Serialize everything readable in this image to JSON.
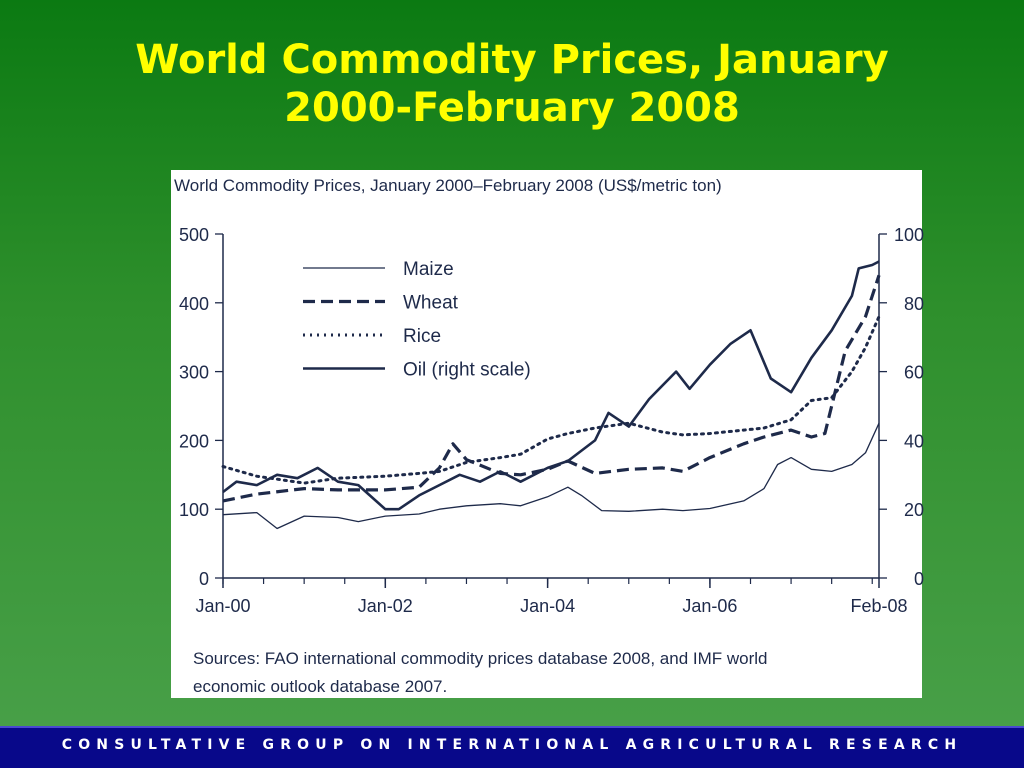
{
  "slide": {
    "title_line1": "World Commodity Prices, January",
    "title_line2": "2000-February 2008",
    "footer": "CONSULTATIVE GROUP ON INTERNATIONAL AGRICULTURAL RESEARCH"
  },
  "colors": {
    "title": "#ffff00",
    "footer_bg": "#08088a",
    "line": "#1e2a4a"
  },
  "chart_data": {
    "type": "line",
    "title": "World Commodity Prices, January 2000–February 2008 (US$/metric ton)",
    "source_line1": "Sources:  FAO international commodity prices database 2008, and IMF world",
    "source_line2": "economic outlook database 2007.",
    "x_ticks": [
      "Jan-00",
      "Jan-02",
      "Jan-04",
      "Jan-06",
      "Feb-08"
    ],
    "x_tick_dates": [
      "2000-01",
      "2002-01",
      "2004-01",
      "2006-01",
      "2008-02"
    ],
    "y_left_ticks": [
      "0",
      "100",
      "200",
      "300",
      "400",
      "500"
    ],
    "y_left_range": [
      0,
      500
    ],
    "y_right_ticks": [
      "0",
      "20",
      "40",
      "60",
      "80",
      "100"
    ],
    "y_right_range": [
      0,
      100
    ],
    "legend_position": "top-left",
    "series": [
      {
        "name": "Maize",
        "style": "solid-thin",
        "axis": "left",
        "points": [
          [
            "2000-01",
            92
          ],
          [
            "2000-06",
            95
          ],
          [
            "2000-09",
            72
          ],
          [
            "2001-01",
            90
          ],
          [
            "2001-06",
            88
          ],
          [
            "2001-09",
            82
          ],
          [
            "2002-01",
            90
          ],
          [
            "2002-06",
            93
          ],
          [
            "2002-09",
            100
          ],
          [
            "2003-01",
            105
          ],
          [
            "2003-06",
            108
          ],
          [
            "2003-09",
            105
          ],
          [
            "2004-01",
            118
          ],
          [
            "2004-04",
            132
          ],
          [
            "2004-06",
            120
          ],
          [
            "2004-09",
            98
          ],
          [
            "2005-01",
            97
          ],
          [
            "2005-06",
            100
          ],
          [
            "2005-09",
            98
          ],
          [
            "2006-01",
            101
          ],
          [
            "2006-06",
            112
          ],
          [
            "2006-09",
            130
          ],
          [
            "2006-11",
            165
          ],
          [
            "2007-01",
            175
          ],
          [
            "2007-04",
            158
          ],
          [
            "2007-07",
            155
          ],
          [
            "2007-10",
            165
          ],
          [
            "2007-12",
            182
          ],
          [
            "2008-02",
            225
          ]
        ]
      },
      {
        "name": "Wheat",
        "style": "dashed",
        "axis": "left",
        "points": [
          [
            "2000-01",
            112
          ],
          [
            "2000-06",
            122
          ],
          [
            "2001-01",
            130
          ],
          [
            "2001-06",
            128
          ],
          [
            "2001-09",
            128
          ],
          [
            "2002-01",
            128
          ],
          [
            "2002-06",
            132
          ],
          [
            "2002-09",
            160
          ],
          [
            "2002-11",
            195
          ],
          [
            "2003-01",
            172
          ],
          [
            "2003-06",
            152
          ],
          [
            "2003-09",
            150
          ],
          [
            "2004-01",
            158
          ],
          [
            "2004-04",
            170
          ],
          [
            "2004-08",
            152
          ],
          [
            "2005-01",
            158
          ],
          [
            "2005-06",
            160
          ],
          [
            "2005-09",
            155
          ],
          [
            "2006-01",
            175
          ],
          [
            "2006-06",
            195
          ],
          [
            "2006-09",
            205
          ],
          [
            "2007-01",
            215
          ],
          [
            "2007-04",
            205
          ],
          [
            "2007-06",
            210
          ],
          [
            "2007-09",
            330
          ],
          [
            "2007-12",
            380
          ],
          [
            "2008-02",
            440
          ]
        ]
      },
      {
        "name": "Rice",
        "style": "dotted",
        "axis": "left",
        "points": [
          [
            "2000-01",
            162
          ],
          [
            "2000-06",
            148
          ],
          [
            "2001-01",
            138
          ],
          [
            "2001-06",
            145
          ],
          [
            "2002-01",
            148
          ],
          [
            "2002-06",
            152
          ],
          [
            "2002-09",
            155
          ],
          [
            "2003-01",
            168
          ],
          [
            "2003-06",
            175
          ],
          [
            "2003-09",
            180
          ],
          [
            "2004-01",
            202
          ],
          [
            "2004-04",
            210
          ],
          [
            "2004-08",
            218
          ],
          [
            "2005-01",
            225
          ],
          [
            "2005-06",
            212
          ],
          [
            "2005-09",
            208
          ],
          [
            "2006-01",
            210
          ],
          [
            "2006-06",
            215
          ],
          [
            "2006-09",
            218
          ],
          [
            "2007-01",
            230
          ],
          [
            "2007-04",
            258
          ],
          [
            "2007-07",
            262
          ],
          [
            "2007-10",
            300
          ],
          [
            "2007-12",
            335
          ],
          [
            "2008-02",
            380
          ]
        ]
      },
      {
        "name": "Oil (right scale)",
        "style": "solid-thick",
        "axis": "right",
        "points": [
          [
            "2000-01",
            25
          ],
          [
            "2000-03",
            28
          ],
          [
            "2000-06",
            27
          ],
          [
            "2000-09",
            30
          ],
          [
            "2000-12",
            29
          ],
          [
            "2001-03",
            32
          ],
          [
            "2001-06",
            28
          ],
          [
            "2001-09",
            27
          ],
          [
            "2002-01",
            20
          ],
          [
            "2002-03",
            20
          ],
          [
            "2002-06",
            24
          ],
          [
            "2002-09",
            27
          ],
          [
            "2002-12",
            30
          ],
          [
            "2003-03",
            28
          ],
          [
            "2003-06",
            31
          ],
          [
            "2003-09",
            28
          ],
          [
            "2004-01",
            32
          ],
          [
            "2004-04",
            34
          ],
          [
            "2004-08",
            40
          ],
          [
            "2004-10",
            48
          ],
          [
            "2005-01",
            44
          ],
          [
            "2005-04",
            52
          ],
          [
            "2005-08",
            60
          ],
          [
            "2005-10",
            55
          ],
          [
            "2006-01",
            62
          ],
          [
            "2006-04",
            68
          ],
          [
            "2006-07",
            72
          ],
          [
            "2006-10",
            58
          ],
          [
            "2007-01",
            54
          ],
          [
            "2007-04",
            64
          ],
          [
            "2007-07",
            72
          ],
          [
            "2007-10",
            82
          ],
          [
            "2007-11",
            90
          ],
          [
            "2008-01",
            91
          ],
          [
            "2008-02",
            92
          ]
        ]
      }
    ]
  }
}
